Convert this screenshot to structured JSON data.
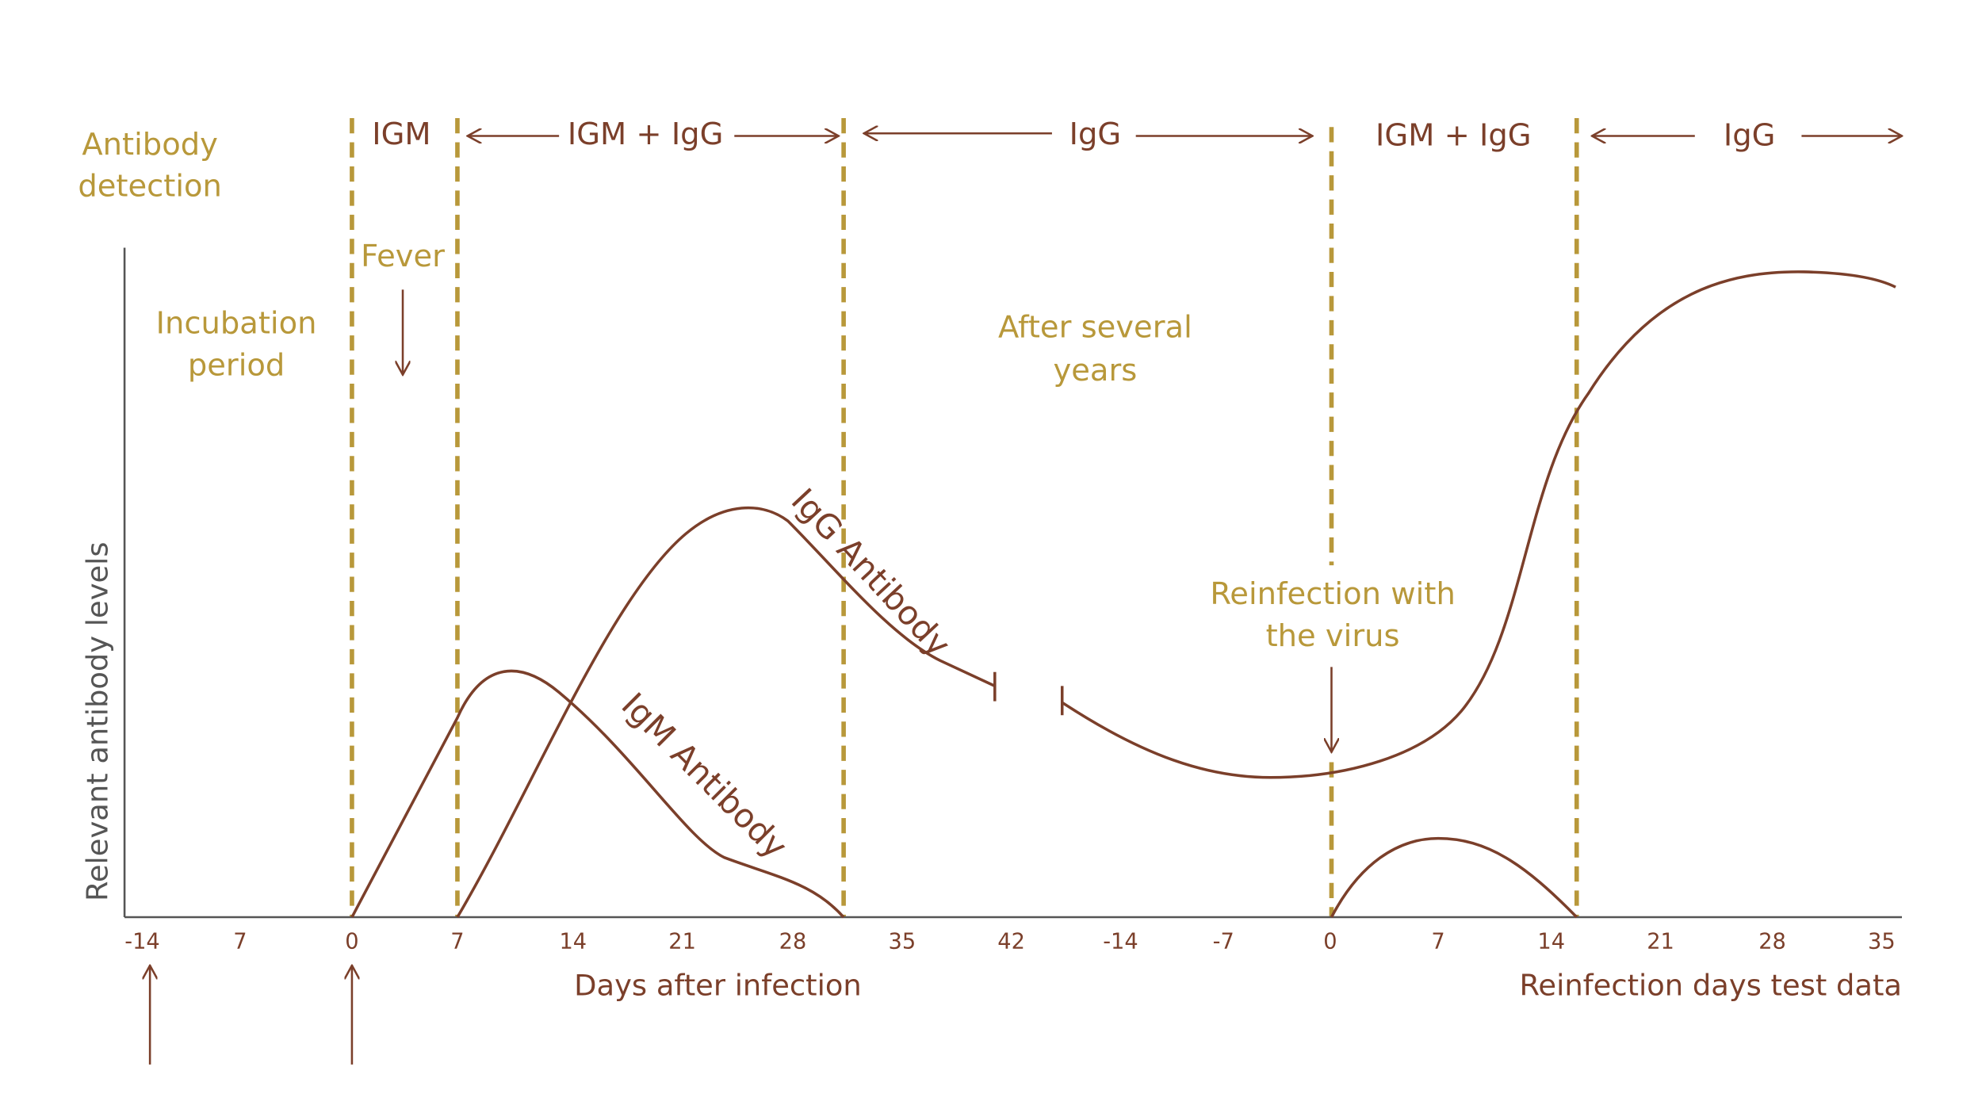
{
  "header": {
    "detection_label": [
      "Antibody",
      "detection"
    ],
    "phases": [
      "IGM",
      "IGM + IgG",
      "IgG",
      "IGM + IgG",
      "IgG"
    ]
  },
  "annotations": {
    "incubation": [
      "Incubation",
      "period"
    ],
    "fever": "Fever",
    "after_years": [
      "After several",
      "years"
    ],
    "reinfection": [
      "Reinfection with",
      "the virus"
    ],
    "igg_curve": "IgG Antibody",
    "igm_curve": "IgM Antibody"
  },
  "axes": {
    "y_label": "Relevant antibody levels",
    "x_label": "Days after infection",
    "x2_label": "Reinfection days test data",
    "ticks": [
      "-14",
      "7",
      "0",
      "7",
      "14",
      "21",
      "28",
      "35",
      "42",
      "-14",
      "-7",
      "0",
      "7",
      "14",
      "21",
      "28",
      "35"
    ]
  }
}
